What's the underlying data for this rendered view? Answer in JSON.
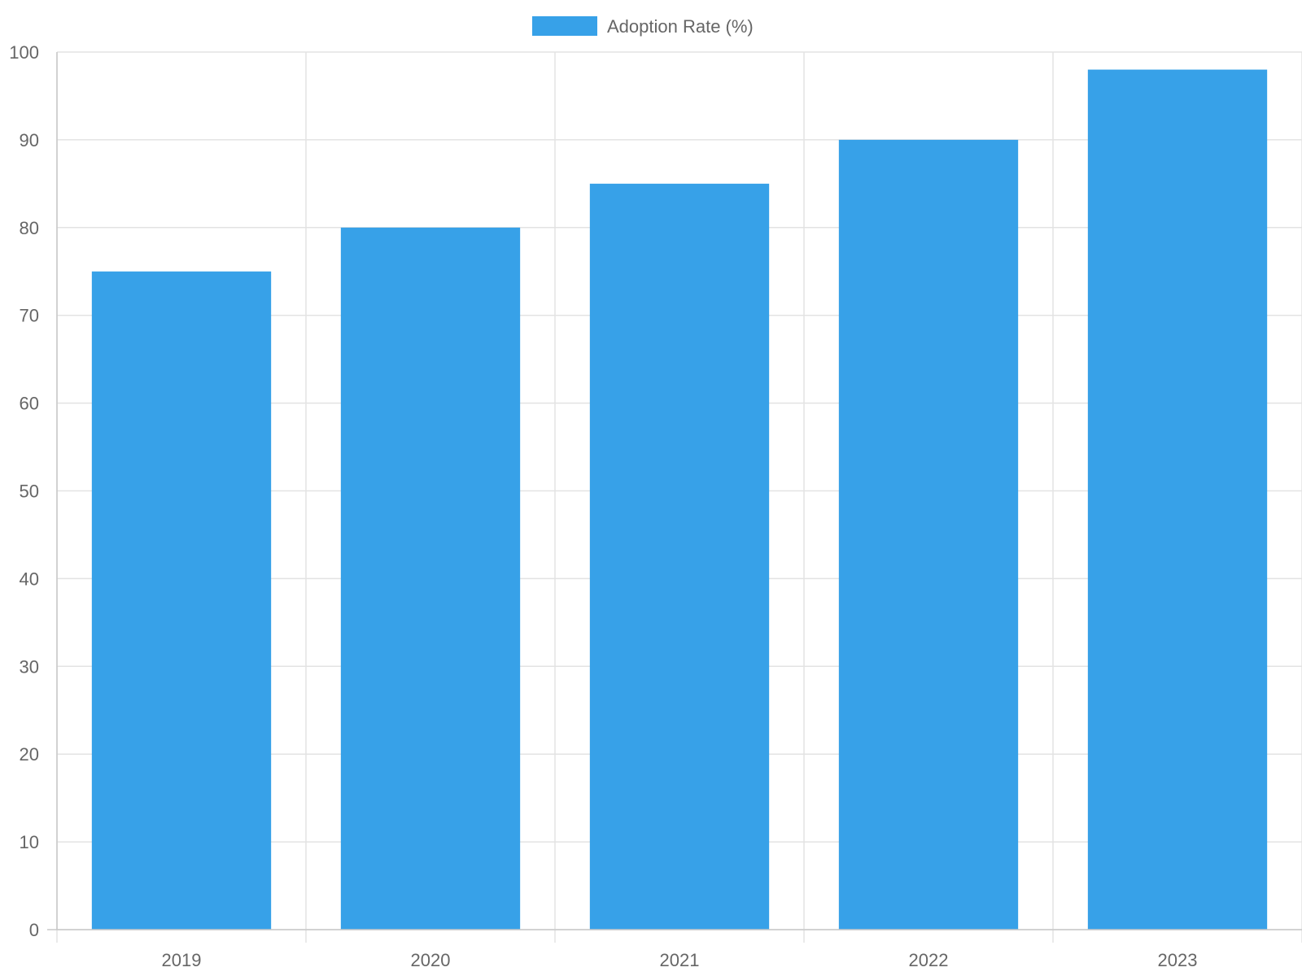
{
  "chart_data": {
    "type": "bar",
    "categories": [
      "2019",
      "2020",
      "2021",
      "2022",
      "2023"
    ],
    "series": [
      {
        "name": "Adoption Rate (%)",
        "values": [
          75,
          80,
          85,
          90,
          98
        ],
        "color": "#37a1e8"
      }
    ],
    "ylim": [
      0,
      100
    ],
    "y_ticks": [
      0,
      10,
      20,
      30,
      40,
      50,
      60,
      70,
      80,
      90,
      100
    ],
    "grid": true,
    "legend": "top-center",
    "title": "",
    "xlabel": "",
    "ylabel": ""
  }
}
